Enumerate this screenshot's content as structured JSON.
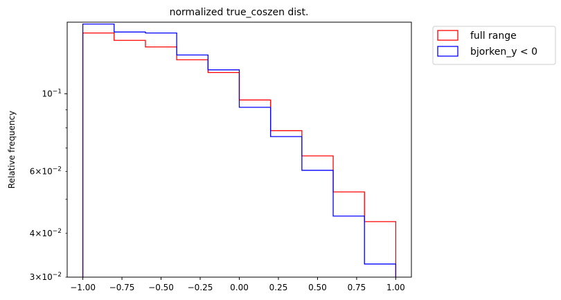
{
  "chart_data": {
    "type": "histogram-step",
    "title": "normalized true_coszen dist.",
    "xlabel": "",
    "ylabel": "Relative frequency",
    "yscale": "log",
    "xlim": [
      -1.1,
      1.1
    ],
    "ylim": [
      0.03,
      0.16
    ],
    "bin_edges": [
      -1.0,
      -0.8,
      -0.6,
      -0.4,
      -0.2,
      0.0,
      0.2,
      0.4,
      0.6,
      0.8,
      1.0
    ],
    "x_tick_labels": [
      "−1.00",
      "−0.75",
      "−0.50",
      "−0.25",
      "0.00",
      "0.25",
      "0.50",
      "0.75",
      "1.00"
    ],
    "x_tick_values": [
      -1.0,
      -0.75,
      -0.5,
      -0.25,
      0.0,
      0.25,
      0.5,
      0.75,
      1.0
    ],
    "y_major_ticks": [
      {
        "value": 0.1,
        "base": "10",
        "exp": "−1"
      }
    ],
    "y_minor_ticks": [
      {
        "value": 0.03,
        "mant": "3",
        "base": "10",
        "exp": "−2"
      },
      {
        "value": 0.04,
        "mant": "4",
        "base": "10",
        "exp": "−2"
      },
      {
        "value": 0.05,
        "mant": "",
        "base": "",
        "exp": ""
      },
      {
        "value": 0.06,
        "mant": "6",
        "base": "10",
        "exp": "−2"
      },
      {
        "value": 0.07,
        "mant": "",
        "base": "",
        "exp": ""
      },
      {
        "value": 0.08,
        "mant": "",
        "base": "",
        "exp": ""
      },
      {
        "value": 0.09,
        "mant": "",
        "base": "",
        "exp": ""
      }
    ],
    "legend_position": "outside-top-right",
    "series": [
      {
        "name": "full range",
        "color": "#ff0000",
        "values": [
          0.149,
          0.142,
          0.136,
          0.125,
          0.115,
          0.096,
          0.0785,
          0.0665,
          0.0525,
          0.0432
        ]
      },
      {
        "name": "bjorken_y < 0",
        "color": "#0000ff",
        "values": [
          0.158,
          0.15,
          0.149,
          0.129,
          0.117,
          0.0915,
          0.0755,
          0.0605,
          0.0448,
          0.0327
        ]
      }
    ]
  }
}
